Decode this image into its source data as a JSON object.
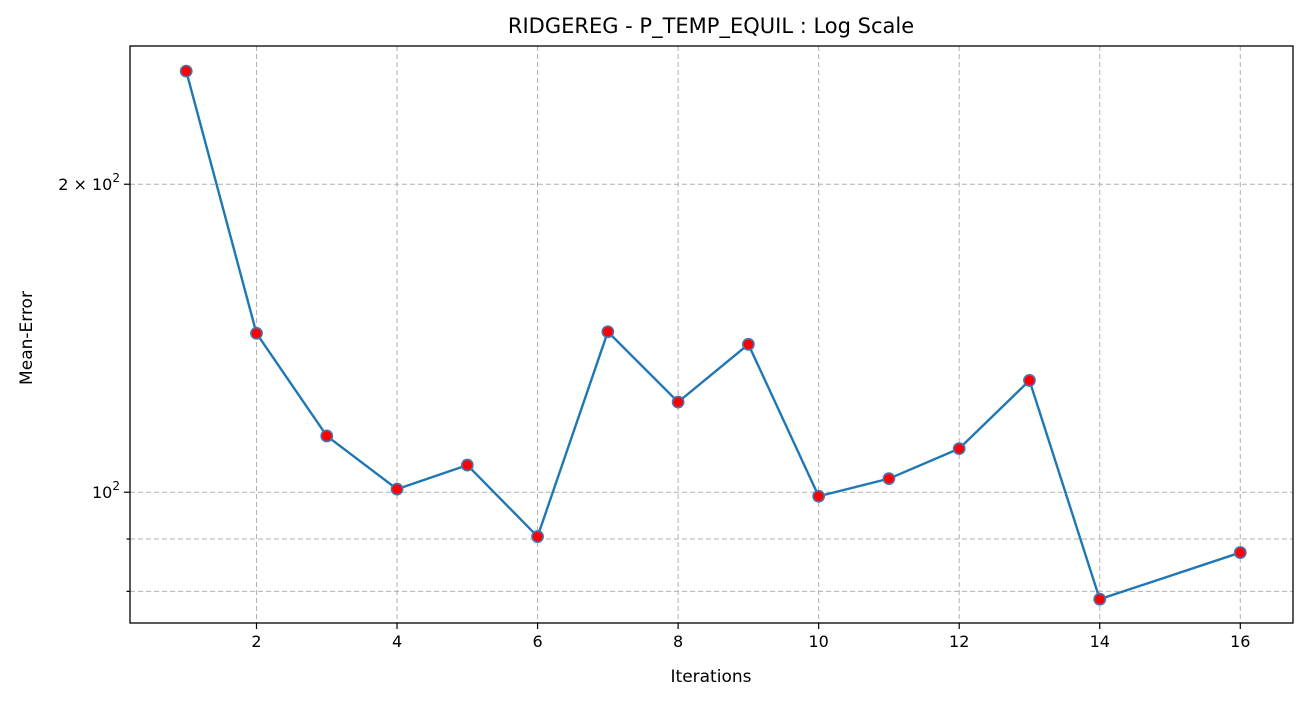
{
  "chart_data": {
    "type": "line",
    "title": "RIDGEREG - P_TEMP_EQUIL : Log Scale",
    "xlabel": "Iterations",
    "ylabel": "Mean-Error",
    "yscale": "log",
    "xlim": [
      0.2,
      16.75
    ],
    "ylim": [
      74.5,
      273
    ],
    "xticks": [
      2,
      4,
      6,
      8,
      10,
      12,
      14,
      16
    ],
    "yticks_major": [
      100,
      200
    ],
    "yticks_major_labels": [
      {
        "mantissa": "",
        "base": "10",
        "exp": "2"
      },
      {
        "mantissa": "2 × ",
        "base": "10",
        "exp": "2"
      }
    ],
    "yticks_minor": [
      80,
      90
    ],
    "grid": true,
    "legend": "none",
    "line_color": "#1f77b4",
    "marker_face": "#ff0000",
    "marker_edge": "#4c72b0",
    "x": [
      1,
      2,
      3,
      4,
      5,
      6,
      7,
      8,
      9,
      10,
      11,
      12,
      13,
      14,
      16
    ],
    "y": [
      258,
      143,
      113.5,
      100.7,
      106.3,
      90.5,
      143.5,
      122.5,
      139.5,
      99.1,
      103.1,
      110.3,
      128.6,
      78.6,
      87.3
    ]
  }
}
